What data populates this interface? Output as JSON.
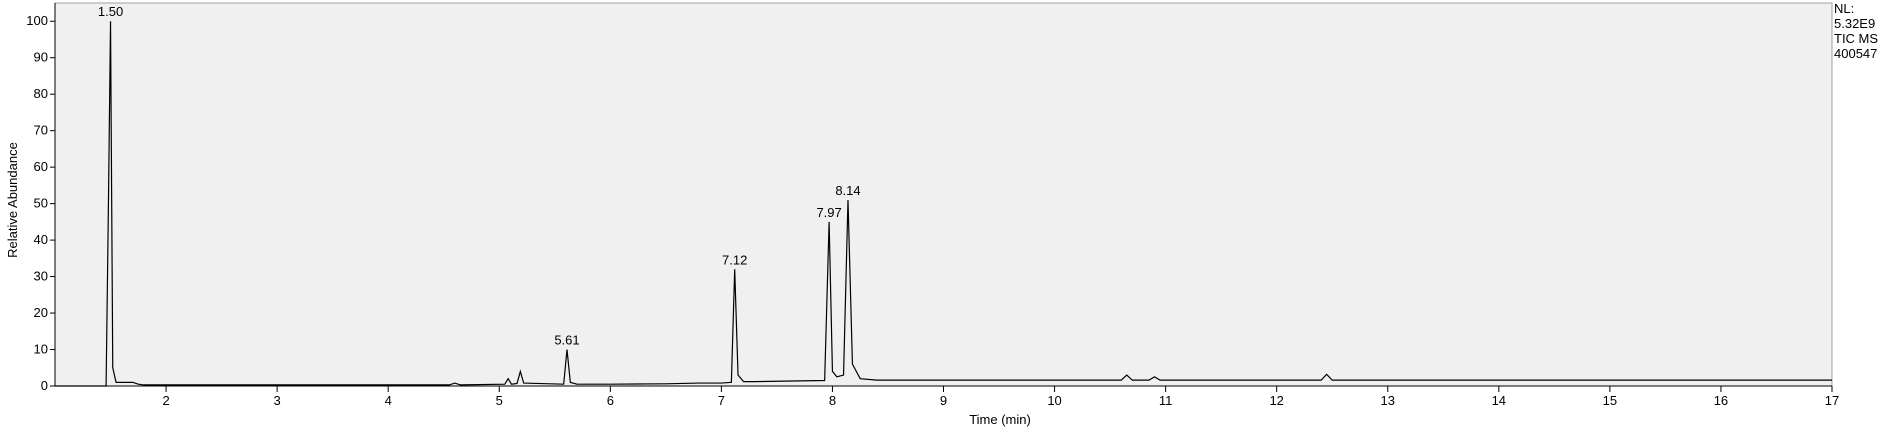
{
  "chart_data": {
    "type": "line",
    "xlabel": "Time (min)",
    "ylabel": "Relative Abundance",
    "info_lines": [
      "NL:",
      "5.32E9",
      "TIC  MS",
      "400547"
    ],
    "x": [
      1.0,
      1.46,
      1.48,
      1.5,
      1.52,
      1.55,
      1.7,
      1.75,
      1.8,
      4.55,
      4.6,
      4.65,
      5.05,
      5.08,
      5.11,
      5.16,
      5.19,
      5.22,
      5.58,
      5.61,
      5.64,
      5.7,
      6.0,
      6.5,
      6.8,
      7.0,
      7.09,
      7.12,
      7.15,
      7.2,
      7.3,
      7.5,
      7.93,
      7.97,
      8.0,
      8.04,
      8.1,
      8.14,
      8.18,
      8.25,
      8.4,
      10.6,
      10.65,
      10.7,
      10.85,
      10.9,
      10.95,
      12.4,
      12.45,
      12.5,
      17.0
    ],
    "series": [
      {
        "color": "#000000",
        "values": [
          0,
          0,
          47,
          100,
          5,
          1,
          1,
          0.5,
          0.3,
          0.3,
          0.8,
          0.3,
          0.5,
          2,
          0.5,
          0.7,
          4,
          0.8,
          0.5,
          10,
          1,
          0.5,
          0.5,
          0.6,
          0.8,
          0.8,
          1,
          32,
          3,
          1.2,
          1.2,
          1.3,
          1.5,
          45,
          4,
          2.5,
          3,
          51,
          6,
          2,
          1.6,
          1.6,
          3,
          1.6,
          1.6,
          2.5,
          1.6,
          1.6,
          3.2,
          1.6,
          1.6
        ]
      }
    ],
    "annotations": [
      {
        "text": "1.50",
        "x": 1.5,
        "y": 100
      },
      {
        "text": "5.61",
        "x": 5.61,
        "y": 10
      },
      {
        "text": "7.12",
        "x": 7.12,
        "y": 32
      },
      {
        "text": "7.97",
        "x": 7.97,
        "y": 45
      },
      {
        "text": "8.14",
        "x": 8.14,
        "y": 51
      }
    ],
    "xlim": [
      1,
      17
    ],
    "ylim": [
      0,
      105
    ],
    "xticks": [
      2,
      3,
      4,
      5,
      6,
      7,
      8,
      9,
      10,
      11,
      12,
      13,
      14,
      15,
      16,
      17
    ],
    "yticks": [
      0,
      10,
      20,
      30,
      40,
      50,
      60,
      70,
      80,
      90,
      100
    ],
    "plot_background": "#f0f0f0"
  }
}
